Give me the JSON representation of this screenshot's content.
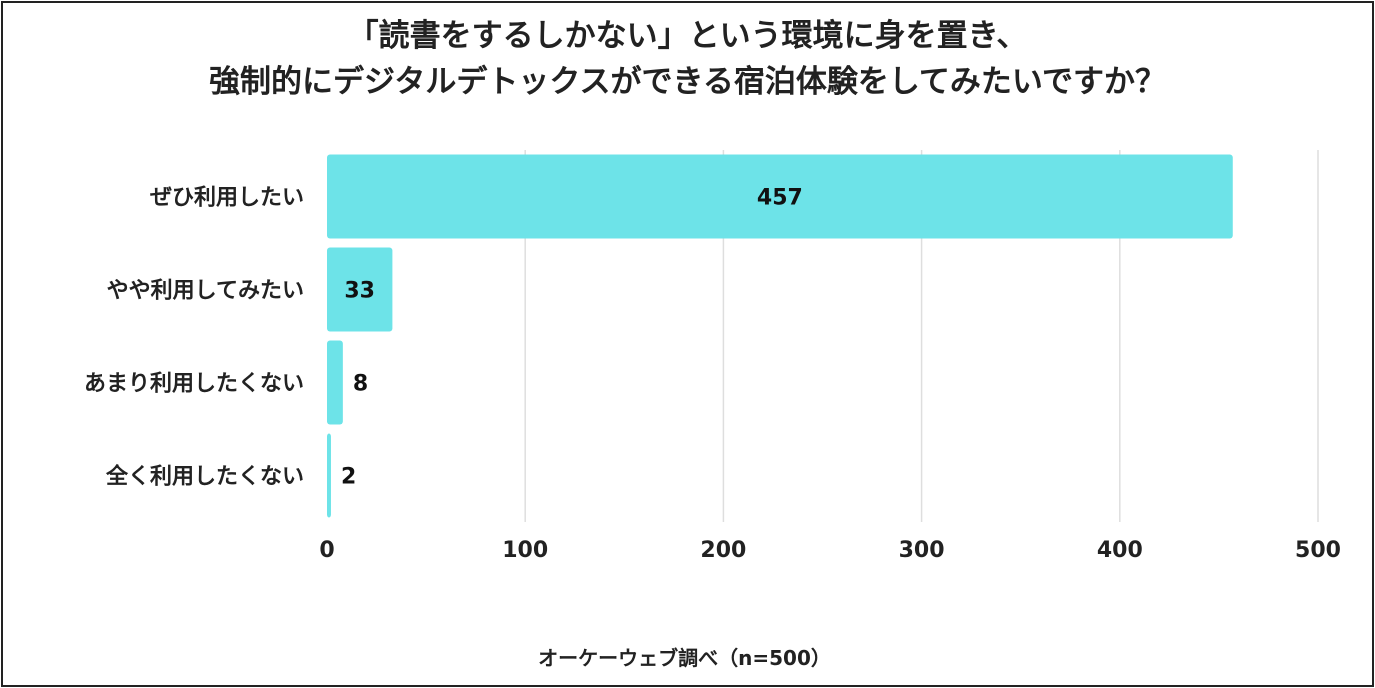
{
  "chart_data": {
    "type": "bar",
    "orientation": "horizontal",
    "title_lines": [
      "「読書をするしかない」という環境に身を置き、",
      "強制的にデジタルデトックスができる宿泊体験をしてみたいですか？"
    ],
    "categories": [
      "ぜひ利用したい",
      "やや利用してみたい",
      "あまり利用したくない",
      "全く利用したくない"
    ],
    "values": [
      457,
      33,
      8,
      2
    ],
    "xlim": [
      0,
      500
    ],
    "xticks": [
      0,
      100,
      200,
      300,
      400,
      500
    ],
    "grid": true,
    "bar_color": "#6de3e8",
    "source_note": "オーケーウェブ調べ（n=500）"
  }
}
